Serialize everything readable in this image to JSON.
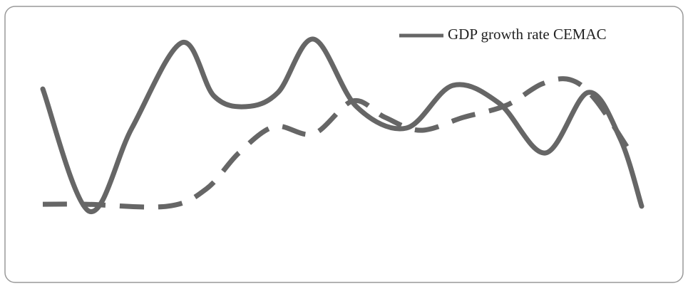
{
  "chart_data": {
    "type": "line",
    "xlim": [
      0,
      84
    ],
    "ylim": [
      0,
      100
    ],
    "legend": "top-right",
    "series": [
      {
        "name": "GDP growth rate CEMAC",
        "color": "#666666",
        "line_style": "solid",
        "x": [
          0,
          6.5,
          12.5,
          19.5,
          24,
          28.5,
          33,
          38,
          44,
          51,
          57.5,
          64,
          70.5,
          76.5,
          81,
          84
        ],
        "values": [
          75.7,
          26.6,
          60,
          94.3,
          72.9,
          68.6,
          74.3,
          95.7,
          68.6,
          60,
          77.1,
          70,
          50,
          74.3,
          55.7,
          28.6
        ]
      },
      {
        "color": "#666666",
        "line_style": "dashed",
        "x": [
          0,
          6,
          17.5,
          23,
          27.5,
          32.5,
          38,
          43.5,
          48,
          53,
          59,
          65,
          70,
          74,
          77.5,
          82.5
        ],
        "values": [
          29.4,
          29.4,
          28.6,
          35.7,
          50,
          60.6,
          57.7,
          70.9,
          64.3,
          59.1,
          64.3,
          69.1,
          77.7,
          79.4,
          71.4,
          50
        ]
      }
    ]
  }
}
